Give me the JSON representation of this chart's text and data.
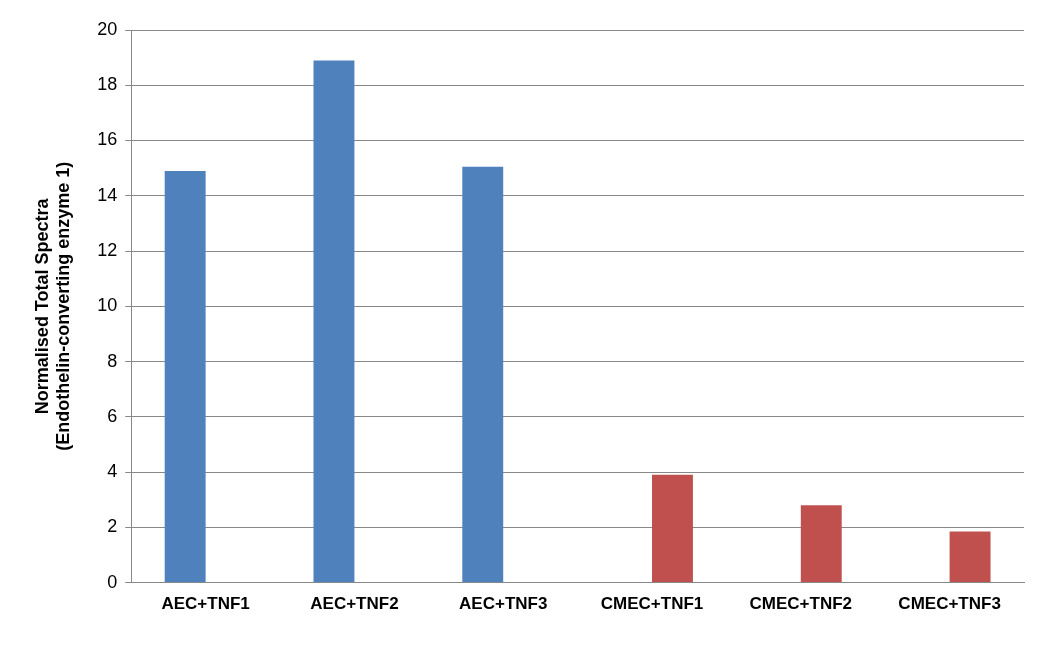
{
  "chart_data": {
    "type": "bar",
    "ylabel": "Normalised Total Spectra\n(Endothelin-converting enzyme 1)",
    "categories": [
      "AEC+TNF1",
      "AEC+TNF2",
      "AEC+TNF3",
      "CMEC+TNF1",
      "CMEC+TNF2",
      "CMEC+TNF3"
    ],
    "series": [
      {
        "color": "#4f81bd",
        "values": [
          14.9,
          18.9,
          15.05,
          null,
          null,
          null
        ]
      },
      {
        "color": "#c0504d",
        "values": [
          null,
          null,
          null,
          3.9,
          2.8,
          1.85
        ]
      }
    ],
    "ylim": [
      0,
      20
    ],
    "yticks": [
      0,
      2,
      4,
      6,
      8,
      10,
      12,
      14,
      16,
      18,
      20
    ],
    "grid": "y",
    "legend": false
  }
}
